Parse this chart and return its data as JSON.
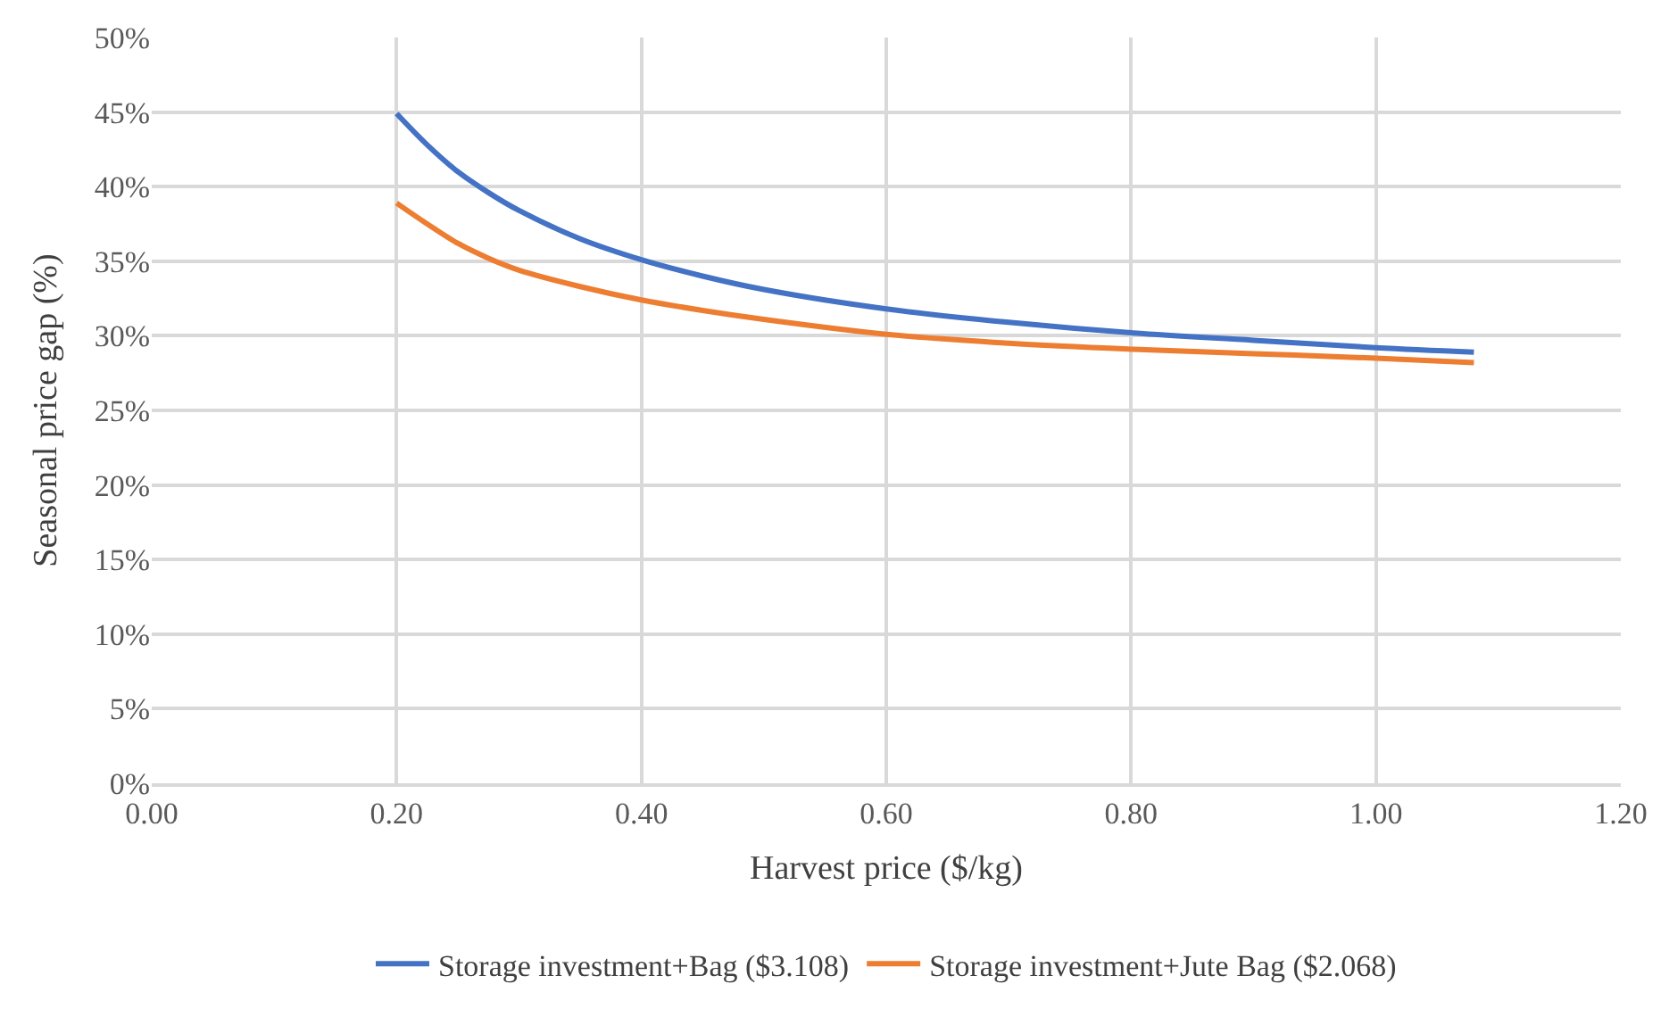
{
  "chart_data": {
    "type": "line",
    "xlabel": "Harvest price ($/kg)",
    "ylabel": "Seasonal price gap (%)",
    "x": [
      0.2,
      0.225,
      0.25,
      0.275,
      0.3,
      0.35,
      0.4,
      0.45,
      0.5,
      0.6,
      0.7,
      0.8,
      0.9,
      1.0,
      1.08
    ],
    "series": [
      {
        "name": "Storage investment+Bag ($3.108)",
        "color": "#4472c4",
        "values": [
          44.9,
          42.8,
          41.0,
          39.6,
          38.4,
          36.5,
          35.1,
          34.0,
          33.1,
          31.8,
          30.9,
          30.2,
          29.7,
          29.2,
          28.9
        ]
      },
      {
        "name": "Storage investment+Jute Bag ($2.068)",
        "color": "#ed7d31",
        "values": [
          38.9,
          37.5,
          36.2,
          35.2,
          34.4,
          33.3,
          32.4,
          31.7,
          31.1,
          30.1,
          29.5,
          29.1,
          28.8,
          28.5,
          28.2
        ]
      }
    ],
    "xlim": [
      0,
      1.2
    ],
    "xticks": [
      {
        "value": 0,
        "label": "0.00"
      },
      {
        "value": 0.2,
        "label": "0.20"
      },
      {
        "value": 0.4,
        "label": "0.40"
      },
      {
        "value": 0.6,
        "label": "0.60"
      },
      {
        "value": 0.8,
        "label": "0.80"
      },
      {
        "value": 1.0,
        "label": "1.00"
      },
      {
        "value": 1.2,
        "label": "1.20"
      }
    ],
    "ylim": [
      0,
      50
    ],
    "yticks": [
      {
        "value": 0,
        "label": "0%"
      },
      {
        "value": 5,
        "label": "5%"
      },
      {
        "value": 10,
        "label": "10%"
      },
      {
        "value": 15,
        "label": "15%"
      },
      {
        "value": 20,
        "label": "20%"
      },
      {
        "value": 25,
        "label": "25%"
      },
      {
        "value": 30,
        "label": "30%"
      },
      {
        "value": 35,
        "label": "35%"
      },
      {
        "value": 40,
        "label": "40%"
      },
      {
        "value": 45,
        "label": "45%"
      },
      {
        "value": 50,
        "label": "50%"
      }
    ],
    "grid": true,
    "legend": "bottom",
    "marker": "none",
    "line_style": "solid"
  }
}
